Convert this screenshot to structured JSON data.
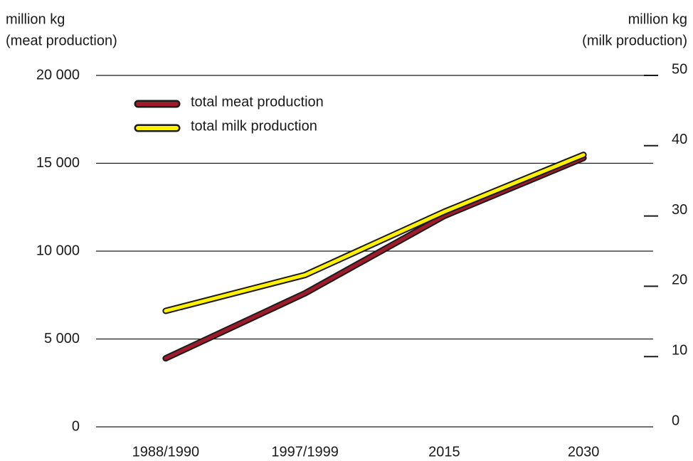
{
  "chart_data": {
    "type": "line",
    "y_label": [
      "million kg",
      "(meat production)"
    ],
    "y2_label": [
      "million kg",
      "(milk production)"
    ],
    "categories": [
      "1988/1990",
      "1997/1999",
      "2015",
      "2030"
    ],
    "series": [
      {
        "name": "total meat production",
        "color": "#9e1b2b",
        "values": [
          3900,
          7600,
          12000,
          15300
        ]
      },
      {
        "name": "total milk production",
        "color": "#fff200",
        "axis": "y2",
        "values": [
          16.5,
          21.6,
          30.6,
          38.7
        ]
      }
    ],
    "ylim": [
      0,
      20000
    ],
    "yticks": [
      {
        "value": 0,
        "label": "0"
      },
      {
        "value": 5000,
        "label": "5 000"
      },
      {
        "value": 10000,
        "label": "10 000"
      },
      {
        "value": 15000,
        "label": "15 000"
      },
      {
        "value": 20000,
        "label": "20 000"
      }
    ],
    "y2lim": [
      0,
      50
    ],
    "y2ticks": [
      0,
      10,
      20,
      30,
      40,
      50
    ],
    "grid": true,
    "legend": "top-left"
  }
}
